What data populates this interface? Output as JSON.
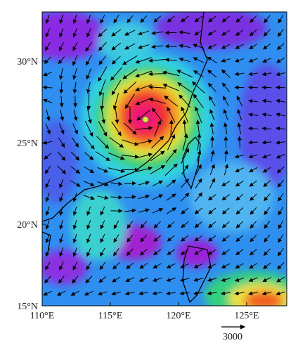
{
  "map": {
    "y_axis_labels": [
      "30°N",
      "25°N",
      "20°N",
      "15°N"
    ],
    "x_axis_labels": [
      "110°E",
      "115°E",
      "120°E",
      "125°E"
    ],
    "scale_vector_label": "3000"
  }
}
